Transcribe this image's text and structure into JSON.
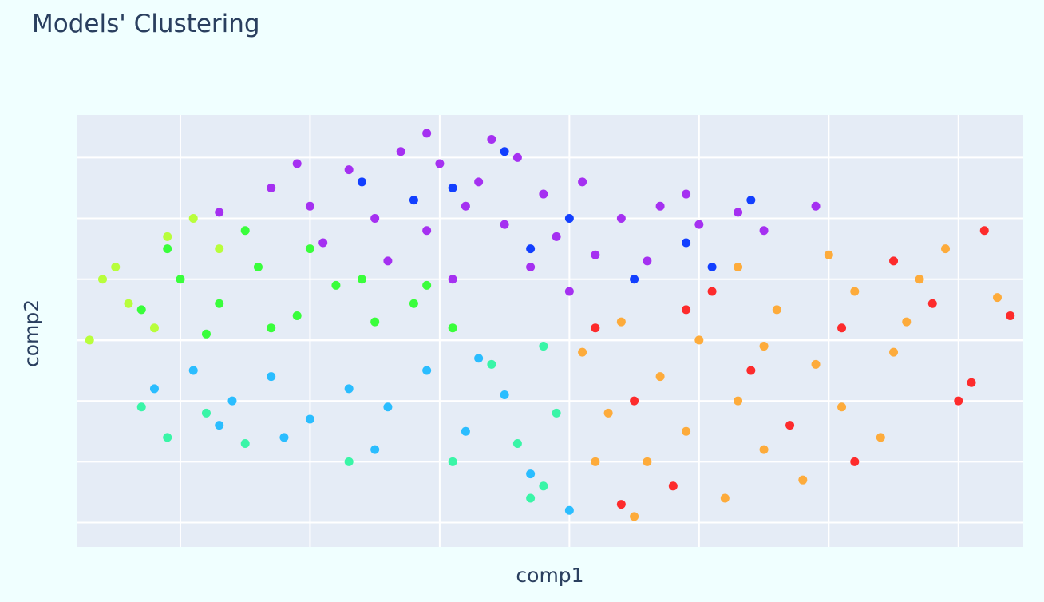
{
  "chart_data": {
    "type": "scatter",
    "title": "Models' Clustering",
    "xlabel": "comp1",
    "ylabel": "comp2",
    "xlim": [
      -3.3,
      4.0
    ],
    "ylim": [
      -3.4,
      3.7
    ],
    "grid": true,
    "legend": "none",
    "background": "#e5ecf6",
    "paper_background": "#f0ffff",
    "x_grid_values": [
      -2.5,
      -1.5,
      -0.5,
      0.5,
      1.5,
      2.5,
      3.5
    ],
    "y_grid_values": [
      -3.0,
      -2.0,
      -1.0,
      0.0,
      1.0,
      2.0,
      3.0
    ],
    "series": [
      {
        "color": "#a020f0",
        "values": [
          [
            -1.2,
            2.8
          ],
          [
            -0.8,
            3.1
          ],
          [
            -0.5,
            2.9
          ],
          [
            -0.2,
            2.6
          ],
          [
            0.1,
            3.0
          ],
          [
            0.3,
            2.4
          ],
          [
            -1.5,
            2.2
          ],
          [
            -1.0,
            2.0
          ],
          [
            -0.6,
            1.8
          ],
          [
            -0.3,
            2.2
          ],
          [
            0.0,
            1.9
          ],
          [
            0.4,
            1.7
          ],
          [
            0.7,
            1.4
          ],
          [
            0.9,
            2.0
          ],
          [
            1.2,
            2.2
          ],
          [
            1.5,
            1.9
          ],
          [
            1.8,
            2.1
          ],
          [
            2.0,
            1.8
          ],
          [
            2.4,
            2.2
          ],
          [
            -1.8,
            2.5
          ],
          [
            -2.2,
            2.1
          ],
          [
            -1.4,
            1.6
          ],
          [
            -0.9,
            1.3
          ],
          [
            -0.4,
            1.0
          ],
          [
            0.2,
            1.2
          ],
          [
            0.5,
            0.8
          ],
          [
            1.1,
            1.3
          ],
          [
            -0.1,
            3.3
          ],
          [
            -0.6,
            3.4
          ],
          [
            1.4,
            2.4
          ],
          [
            0.6,
            2.6
          ],
          [
            -1.6,
            2.9
          ]
        ]
      },
      {
        "color": "#0030ff",
        "values": [
          [
            -1.1,
            2.6
          ],
          [
            -0.4,
            2.5
          ],
          [
            0.0,
            3.1
          ],
          [
            0.5,
            2.0
          ],
          [
            1.0,
            1.0
          ],
          [
            1.4,
            1.6
          ],
          [
            1.9,
            2.3
          ],
          [
            0.2,
            1.5
          ],
          [
            -0.7,
            2.3
          ],
          [
            1.6,
            1.2
          ]
        ]
      },
      {
        "color": "#b4ff2a",
        "values": [
          [
            -3.2,
            0.0
          ],
          [
            -3.0,
            1.2
          ],
          [
            -2.9,
            0.6
          ],
          [
            -2.6,
            1.7
          ],
          [
            -2.4,
            2.0
          ],
          [
            -3.1,
            1.0
          ],
          [
            -2.7,
            0.2
          ],
          [
            -2.2,
            1.5
          ]
        ]
      },
      {
        "color": "#2aff2a",
        "values": [
          [
            -2.8,
            0.5
          ],
          [
            -2.5,
            1.0
          ],
          [
            -2.2,
            0.6
          ],
          [
            -1.9,
            1.2
          ],
          [
            -1.6,
            0.4
          ],
          [
            -1.3,
            0.9
          ],
          [
            -1.0,
            0.3
          ],
          [
            -0.7,
            0.6
          ],
          [
            -0.4,
            0.2
          ],
          [
            -2.6,
            1.5
          ],
          [
            -2.0,
            1.8
          ],
          [
            -1.5,
            1.5
          ],
          [
            -2.3,
            0.1
          ],
          [
            -1.1,
            1.0
          ],
          [
            -0.6,
            0.9
          ],
          [
            -1.8,
            0.2
          ]
        ]
      },
      {
        "color": "#1ab8ff",
        "values": [
          [
            -2.7,
            -0.8
          ],
          [
            -2.4,
            -0.5
          ],
          [
            -2.1,
            -1.0
          ],
          [
            -1.8,
            -0.6
          ],
          [
            -1.5,
            -1.3
          ],
          [
            -1.2,
            -0.8
          ],
          [
            -0.9,
            -1.1
          ],
          [
            -0.6,
            -0.5
          ],
          [
            -0.3,
            -1.5
          ],
          [
            0.0,
            -0.9
          ],
          [
            0.2,
            -2.2
          ],
          [
            -1.7,
            -1.6
          ],
          [
            0.5,
            -2.8
          ],
          [
            -2.2,
            -1.4
          ],
          [
            -1.0,
            -1.8
          ],
          [
            -0.2,
            -0.3
          ]
        ]
      },
      {
        "color": "#2af5a0",
        "values": [
          [
            -2.8,
            -1.1
          ],
          [
            -2.6,
            -1.6
          ],
          [
            -2.0,
            -1.7
          ],
          [
            -1.2,
            -2.0
          ],
          [
            -0.4,
            -2.0
          ],
          [
            0.1,
            -1.7
          ],
          [
            0.3,
            -2.4
          ],
          [
            0.4,
            -1.2
          ],
          [
            -0.1,
            -0.4
          ],
          [
            0.3,
            -0.1
          ],
          [
            -2.3,
            -1.2
          ],
          [
            0.2,
            -2.6
          ]
        ]
      },
      {
        "color": "#ffa52a",
        "values": [
          [
            0.6,
            -0.2
          ],
          [
            0.9,
            0.3
          ],
          [
            1.2,
            -0.6
          ],
          [
            1.5,
            0.0
          ],
          [
            1.8,
            -1.0
          ],
          [
            2.1,
            0.5
          ],
          [
            2.4,
            -0.4
          ],
          [
            2.7,
            0.8
          ],
          [
            3.0,
            -0.2
          ],
          [
            3.2,
            1.0
          ],
          [
            0.8,
            -1.2
          ],
          [
            1.1,
            -2.0
          ],
          [
            1.4,
            -1.5
          ],
          [
            1.7,
            -2.6
          ],
          [
            2.0,
            -1.8
          ],
          [
            2.3,
            -2.3
          ],
          [
            2.6,
            -1.1
          ],
          [
            2.9,
            -1.6
          ],
          [
            3.4,
            1.5
          ],
          [
            2.5,
            1.4
          ],
          [
            1.8,
            1.2
          ],
          [
            1.0,
            -2.9
          ],
          [
            0.7,
            -2.0
          ],
          [
            3.8,
            0.7
          ],
          [
            3.1,
            0.3
          ],
          [
            2.0,
            -0.1
          ]
        ]
      },
      {
        "color": "#ff1a1a",
        "values": [
          [
            0.7,
            0.2
          ],
          [
            1.0,
            -1.0
          ],
          [
            1.4,
            0.5
          ],
          [
            1.9,
            -0.5
          ],
          [
            2.2,
            -1.4
          ],
          [
            2.6,
            0.2
          ],
          [
            3.0,
            1.3
          ],
          [
            3.3,
            0.6
          ],
          [
            3.6,
            -0.7
          ],
          [
            3.7,
            1.8
          ],
          [
            3.5,
            -1.0
          ],
          [
            1.3,
            -2.4
          ],
          [
            0.9,
            -2.7
          ],
          [
            2.7,
            -2.0
          ],
          [
            1.6,
            0.8
          ],
          [
            3.9,
            0.4
          ]
        ]
      }
    ]
  }
}
